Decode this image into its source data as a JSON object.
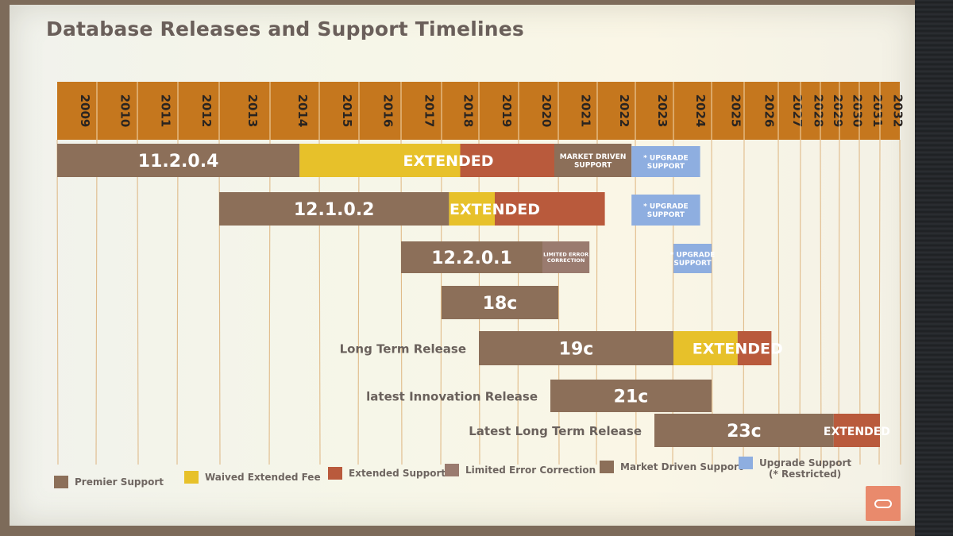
{
  "title": "Database Releases and Support Timelines",
  "colors": {
    "header": "#c5771e",
    "premier": "#8c6f59",
    "waived": "#e7c12a",
    "extended": "#b95a3c",
    "limited": "#9a7b6f",
    "market": "#8c6f59",
    "upgrade": "#8eaee0"
  },
  "chart_data": {
    "type": "gantt",
    "x_categories": [
      "2009",
      "2010",
      "2011",
      "2012",
      "2013",
      "2014",
      "2015",
      "2016",
      "2017",
      "2018",
      "2019",
      "2020",
      "2021",
      "2022",
      "2023",
      "2024",
      "2025",
      "2026",
      "2027",
      "2028",
      "2029",
      "2030",
      "2031",
      "2032"
    ],
    "releases": [
      {
        "name": "11.2.0.4",
        "row_label": "",
        "segments": [
          {
            "type": "premier",
            "start": 2009.0,
            "end": 2014.6,
            "text": "11.2.0.4"
          },
          {
            "type": "waived",
            "start": 2014.6,
            "end": 2018.5,
            "text": ""
          },
          {
            "type": "extended",
            "start": 2018.5,
            "end": 2020.9,
            "text": ""
          },
          {
            "type": "market",
            "start": 2020.9,
            "end": 2022.9,
            "text": "MARKET DRIVEN SUPPORT"
          },
          {
            "type": "upgrade",
            "start": 2022.9,
            "end": 2024.7,
            "text": "* UPGRADE SUPPORT"
          }
        ],
        "overlay": "EXTENDED"
      },
      {
        "name": "12.1.0.2",
        "row_label": "",
        "segments": [
          {
            "type": "premier",
            "start": 2013.0,
            "end": 2018.2,
            "text": "12.1.0.2"
          },
          {
            "type": "waived",
            "start": 2018.2,
            "end": 2019.4,
            "text": ""
          },
          {
            "type": "extended",
            "start": 2019.4,
            "end": 2022.2,
            "text": ""
          },
          {
            "type": "upgrade",
            "start": 2022.9,
            "end": 2024.7,
            "text": "* UPGRADE SUPPORT"
          }
        ],
        "overlay": "EXTENDED"
      },
      {
        "name": "12.2.0.1",
        "row_label": "",
        "segments": [
          {
            "type": "premier",
            "start": 2017.0,
            "end": 2020.6,
            "text": "12.2.0.1"
          },
          {
            "type": "limited",
            "start": 2020.6,
            "end": 2021.8,
            "text": "LIMITED ERROR CORRECTION"
          },
          {
            "type": "upgrade",
            "start": 2024.0,
            "end": 2025.0,
            "text": "* UPGRADE SUPPORT"
          }
        ],
        "overlay": ""
      },
      {
        "name": "18c",
        "row_label": "",
        "segments": [
          {
            "type": "premier",
            "start": 2018.0,
            "end": 2021.0,
            "text": "18c"
          }
        ],
        "overlay": ""
      },
      {
        "name": "19c",
        "row_label": "Long Term Release",
        "segments": [
          {
            "type": "premier",
            "start": 2019.0,
            "end": 2024.0,
            "text": "19c"
          },
          {
            "type": "waived",
            "start": 2024.0,
            "end": 2025.8,
            "text": ""
          },
          {
            "type": "extended",
            "start": 2025.8,
            "end": 2026.8,
            "text": ""
          }
        ],
        "overlay": "EXTENDED"
      },
      {
        "name": "21c",
        "row_label": "latest Innovation Release",
        "segments": [
          {
            "type": "premier",
            "start": 2020.8,
            "end": 2025.0,
            "text": "21c"
          }
        ],
        "overlay": ""
      },
      {
        "name": "23c",
        "row_label": "Latest Long Term Release",
        "segments": [
          {
            "type": "premier",
            "start": 2023.5,
            "end": 2029.7,
            "text": "23c"
          },
          {
            "type": "extended",
            "start": 2029.7,
            "end": 2032.0,
            "text": "EXTENDED"
          }
        ],
        "overlay": ""
      }
    ],
    "legend": [
      {
        "key": "premier",
        "label": "Premier Support"
      },
      {
        "key": "waived",
        "label": "Waived Extended Fee"
      },
      {
        "key": "extended",
        "label": "Extended Support"
      },
      {
        "key": "limited",
        "label": "Limited Error Correction"
      },
      {
        "key": "market",
        "label": "Market Driven Support"
      },
      {
        "key": "upgrade",
        "label": "Upgrade Support",
        "sub": "(* Restricted)"
      }
    ]
  }
}
